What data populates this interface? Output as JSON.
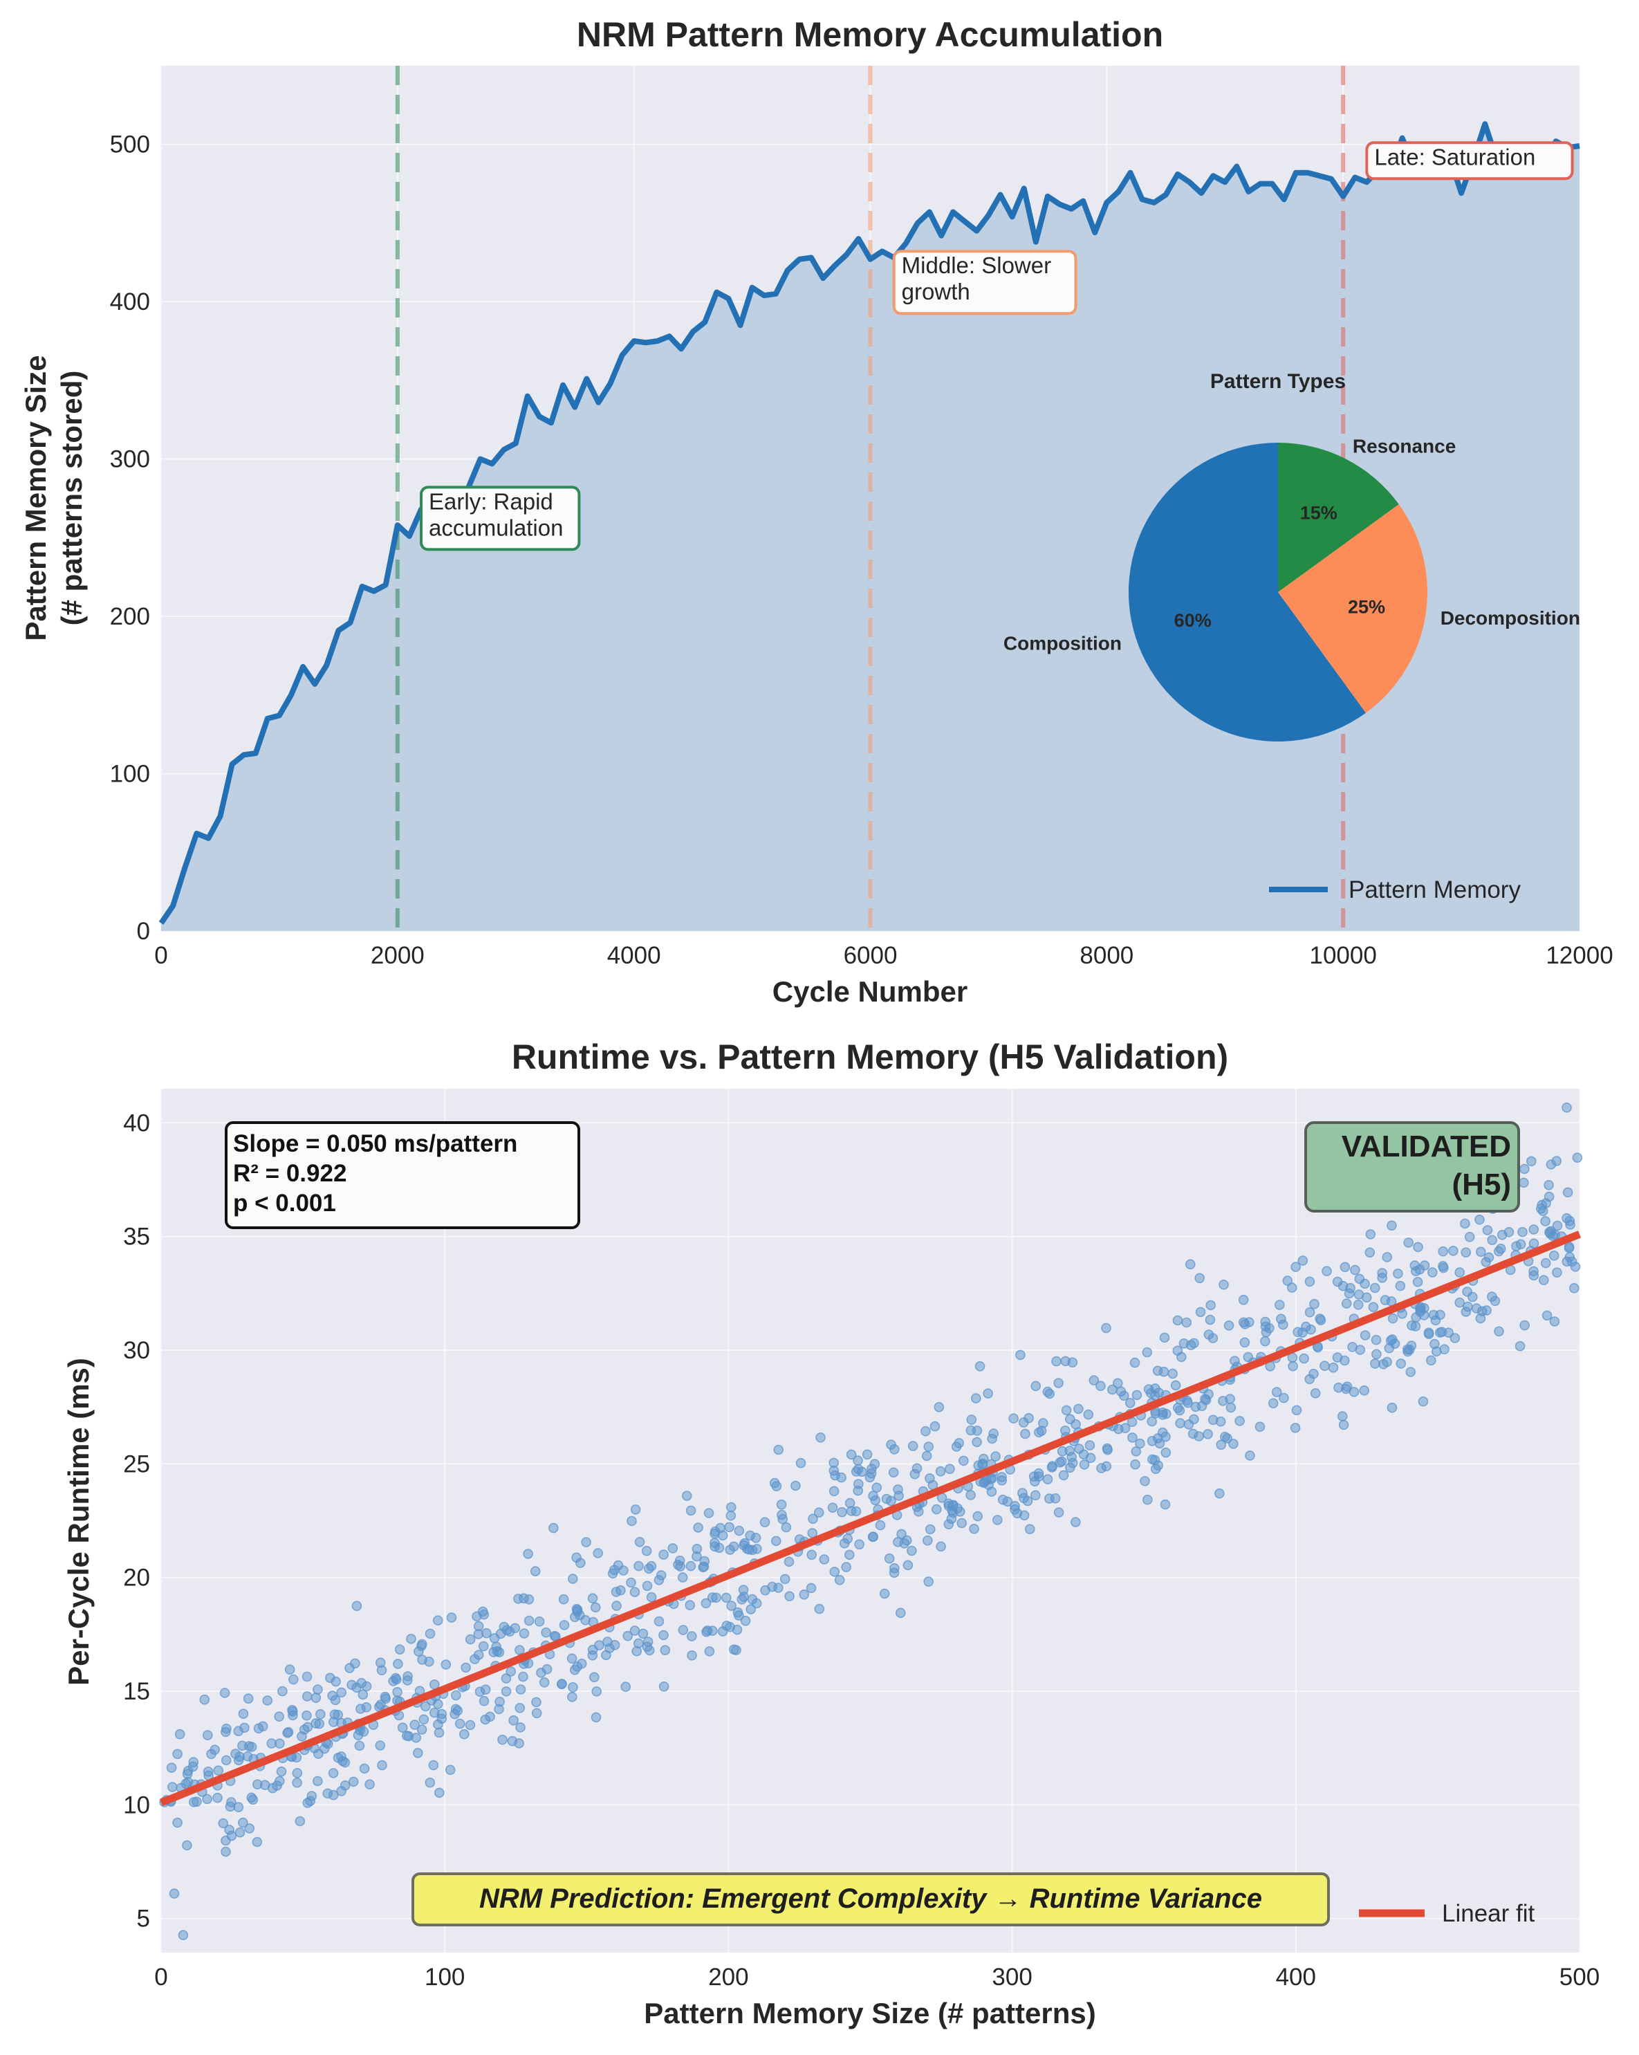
{
  "colors": {
    "background": "#ffffff",
    "plot_bg": "#e9eaf1",
    "grid": "#f6f6fa",
    "memory_line": "#2370b5",
    "memory_fill": "#bfd0e3",
    "early": "#2e8b57",
    "middle": "#f59a6c",
    "late": "#e0635a",
    "scatter": "#5b93cc",
    "fit_line": "#e24a33",
    "composition": "#2171b5",
    "decomposition": "#fc8d59",
    "resonance": "#238b45",
    "validated_bg": "#94c4a2",
    "prediction_bg": "#f2f06e",
    "text": "#262626"
  },
  "chart_data": [
    {
      "type": "area",
      "title": "NRM Pattern Memory Accumulation",
      "xlabel": "Cycle Number",
      "ylabel": [
        "Pattern Memory Size",
        "(# patterns stored)"
      ],
      "xlim": [
        0,
        12000
      ],
      "ylim": [
        0,
        550
      ],
      "xticks": [
        0,
        2000,
        4000,
        6000,
        8000,
        10000,
        12000
      ],
      "yticks": [
        0,
        100,
        200,
        300,
        400,
        500
      ],
      "grid": true,
      "legend": {
        "position": "bottom-right",
        "entries": [
          "Pattern Memory"
        ]
      },
      "series": [
        {
          "name": "Pattern Memory",
          "x": [
            0,
            100,
            200,
            300,
            400,
            500,
            600,
            700,
            800,
            900,
            1000,
            1100,
            1200,
            1300,
            1400,
            1500,
            1600,
            1700,
            1800,
            1900,
            2000,
            2100,
            2200,
            2300,
            2400,
            2500,
            2600,
            2700,
            2800,
            2900,
            3000,
            3100,
            3200,
            3300,
            3400,
            3500,
            3600,
            3700,
            3800,
            3900,
            4000,
            4100,
            4200,
            4300,
            4400,
            4500,
            4600,
            4700,
            4800,
            4900,
            5000,
            5100,
            5200,
            5300,
            5400,
            5500,
            5600,
            5700,
            5800,
            5900,
            6000,
            6100,
            6200,
            6300,
            6400,
            6500,
            6600,
            6700,
            6800,
            6900,
            7000,
            7100,
            7200,
            7300,
            7400,
            7500,
            7600,
            7700,
            7800,
            7900,
            8000,
            8100,
            8200,
            8300,
            8400,
            8500,
            8600,
            8700,
            8800,
            8900,
            9000,
            9100,
            9200,
            9300,
            9400,
            9500,
            9600,
            9700,
            9800,
            9900,
            10000,
            10100,
            10200,
            10300,
            10400,
            10500,
            10600,
            10700,
            10800,
            10900,
            11000,
            11100,
            11200,
            11300,
            11400,
            11500,
            11600,
            11700,
            11800,
            11900,
            12000
          ],
          "values": [
            5,
            16,
            40,
            62,
            59,
            73,
            106,
            112,
            113,
            135,
            137,
            150,
            168,
            157,
            169,
            191,
            196,
            219,
            216,
            220,
            258,
            251,
            268,
            274,
            279,
            276,
            282,
            300,
            297,
            306,
            310,
            340,
            327,
            323,
            347,
            333,
            351,
            336,
            348,
            366,
            375,
            374,
            375,
            378,
            370,
            381,
            387,
            406,
            402,
            385,
            409,
            404,
            405,
            420,
            427,
            428,
            415,
            423,
            430,
            440,
            427,
            432,
            428,
            437,
            450,
            457,
            442,
            457,
            451,
            445,
            455,
            468,
            454,
            472,
            438,
            467,
            462,
            459,
            464,
            444,
            463,
            470,
            482,
            465,
            463,
            468,
            481,
            476,
            469,
            480,
            476,
            486,
            470,
            475,
            475,
            465,
            482,
            482,
            480,
            478,
            467,
            479,
            476,
            484,
            481,
            504,
            486,
            484,
            482,
            492,
            469,
            490,
            513,
            490,
            494,
            492,
            486,
            489,
            502,
            498,
            499
          ]
        }
      ],
      "vlines": [
        {
          "x": 2000,
          "label": [
            "Early: Rapid",
            "accumulation"
          ],
          "label_at": [
            2200,
            268
          ],
          "color_key": "early"
        },
        {
          "x": 6000,
          "label": [
            "Middle: Slower",
            "growth"
          ],
          "label_at": [
            6200,
            418
          ],
          "color_key": "middle"
        },
        {
          "x": 10000,
          "label": [
            "Late: Saturation"
          ],
          "label_at": [
            10200,
            487
          ],
          "color_key": "late"
        }
      ],
      "inset_pie": {
        "title": "Pattern Types",
        "slices": [
          {
            "label": "Composition",
            "value": 60,
            "pct_label": "60%",
            "color_key": "composition"
          },
          {
            "label": "Decomposition",
            "value": 25,
            "pct_label": "25%",
            "color_key": "decomposition"
          },
          {
            "label": "Resonance",
            "value": 15,
            "pct_label": "15%",
            "color_key": "resonance"
          }
        ]
      }
    },
    {
      "type": "scatter",
      "title": "Runtime vs. Pattern Memory (H5 Validation)",
      "xlabel": "Pattern Memory Size (# patterns)",
      "ylabel": "Per-Cycle Runtime (ms)",
      "xlim": [
        0,
        500
      ],
      "ylim": [
        3.5,
        41.5
      ],
      "xticks": [
        0,
        100,
        200,
        300,
        400,
        500
      ],
      "yticks": [
        5,
        10,
        15,
        20,
        25,
        30,
        35,
        40
      ],
      "grid": true,
      "legend": {
        "position": "bottom-right",
        "entries": [
          "Linear fit"
        ]
      },
      "scatter_model": {
        "n": 1000,
        "intercept": 10.1,
        "slope": 0.05,
        "noise_sd": 1.9,
        "x_range": [
          0,
          500
        ]
      },
      "fit": {
        "name": "Linear fit",
        "slope": 0.05,
        "intercept": 10.1
      },
      "stats_box": [
        "Slope = 0.050 ms/pattern",
        "R² = 0.922",
        "p < 0.001"
      ],
      "validated_box": [
        "VALIDATED",
        "(H5)"
      ],
      "prediction_box": "NRM Prediction: Emergent Complexity → Runtime Variance"
    }
  ]
}
